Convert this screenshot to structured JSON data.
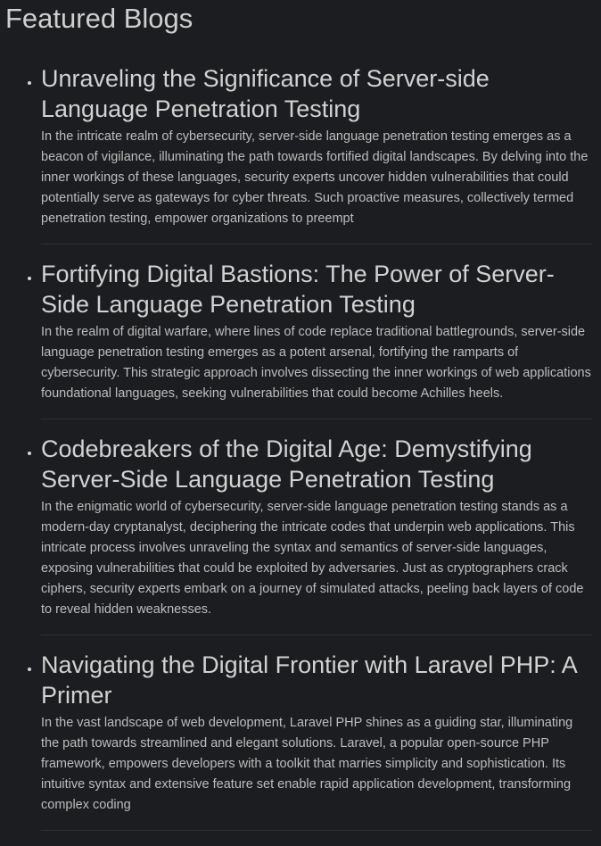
{
  "header": {
    "title": "Featured Blogs"
  },
  "posts": [
    {
      "title": "Unraveling the Significance of Server-side Language Penetration Testing",
      "excerpt": "In the intricate realm of cybersecurity, server-side language penetration testing emerges as a beacon of vigilance, illuminating the path towards fortified digital landscapes. By delving into the inner workings of these languages, security experts uncover hidden vulnerabilities that could potentially serve as gateways for cyber threats. Such proactive measures, collectively termed penetration testing, empower organizations to preempt"
    },
    {
      "title": "Fortifying Digital Bastions: The Power of Server-Side Language Penetration Testing",
      "excerpt": "In the realm of digital warfare, where lines of code replace traditional battlegrounds, server-side language penetration testing emerges as a potent arsenal, fortifying the ramparts of cybersecurity. This strategic approach involves dissecting the inner workings of web applications foundational languages, seeking vulnerabilities that could become Achilles heels."
    },
    {
      "title": "Codebreakers of the Digital Age: Demystifying Server-Side Language Penetration Testing",
      "excerpt": "In the enigmatic world of cybersecurity, server-side language penetration testing stands as a modern-day cryptanalyst, deciphering the intricate codes that underpin web applications. This intricate process involves unraveling the syntax and semantics of server-side languages, exposing vulnerabilities that could be exploited by adversaries. Just as cryptographers crack ciphers, security experts embark on a journey of simulated attacks, peeling back layers of code to reveal hidden weaknesses."
    },
    {
      "title": "Navigating the Digital Frontier with Laravel PHP: A Primer",
      "excerpt": "In the vast landscape of web development, Laravel PHP shines as a guiding star, illuminating the path towards streamlined and elegant solutions. Laravel, a popular open-source PHP framework, empowers developers with a toolkit that marries simplicity and sophistication. Its intuitive syntax and extensive feature set enable rapid application development, transforming complex coding"
    }
  ]
}
